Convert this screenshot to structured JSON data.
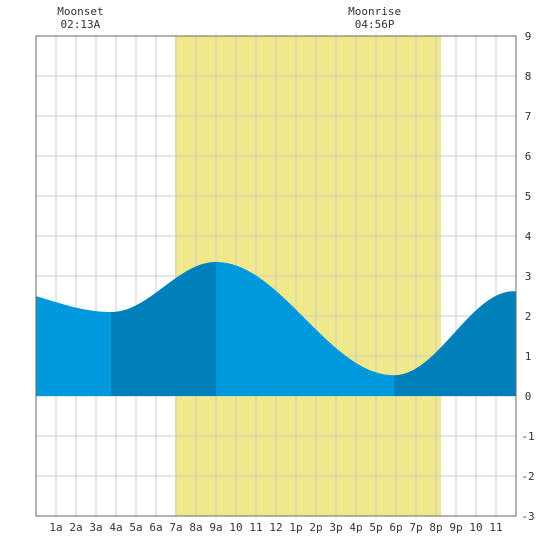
{
  "chart_data": {
    "type": "area",
    "title": "",
    "xlabel": "",
    "ylabel": "",
    "xlim": [
      0,
      24
    ],
    "ylim": [
      -3,
      9
    ],
    "x_tick_labels": [
      "1a",
      "2a",
      "3a",
      "4a",
      "5a",
      "6a",
      "7a",
      "8a",
      "9a",
      "10",
      "11",
      "12",
      "1p",
      "2p",
      "3p",
      "4p",
      "5p",
      "6p",
      "7p",
      "8p",
      "9p",
      "10",
      "11"
    ],
    "y_tick_labels": [
      "-3",
      "-2",
      "-1",
      "0",
      "1",
      "2",
      "3",
      "4",
      "5",
      "6",
      "7",
      "8",
      "9"
    ],
    "daylight": {
      "start": 6.95,
      "end": 20.25
    },
    "moon_events": [
      {
        "name": "Moonset",
        "time": "02:13A",
        "hour": 2.22
      },
      {
        "name": "Moonrise",
        "time": "04:56P",
        "hour": 16.93
      }
    ],
    "tide_extremes": [
      {
        "hour": 3.75,
        "height": 2.1,
        "kind": "low"
      },
      {
        "hour": 9.0,
        "height": 3.35,
        "kind": "high"
      },
      {
        "hour": 17.9,
        "height": 0.52,
        "kind": "low"
      },
      {
        "hour": 23.9,
        "height": 2.62,
        "kind": "high"
      }
    ],
    "start_height": 2.4,
    "shading_segments": [
      {
        "from": 0,
        "to": 3.75,
        "shade": "light"
      },
      {
        "from": 3.75,
        "to": 9.0,
        "shade": "dark"
      },
      {
        "from": 9.0,
        "to": 17.9,
        "shade": "light"
      },
      {
        "from": 17.9,
        "to": 24,
        "shade": "dark"
      }
    ]
  },
  "colors": {
    "daylight": "#f0e98c",
    "tide_light": "#0099dd",
    "tide_dark": "#0080bb",
    "grid": "#cccccc",
    "frame": "#666666"
  }
}
